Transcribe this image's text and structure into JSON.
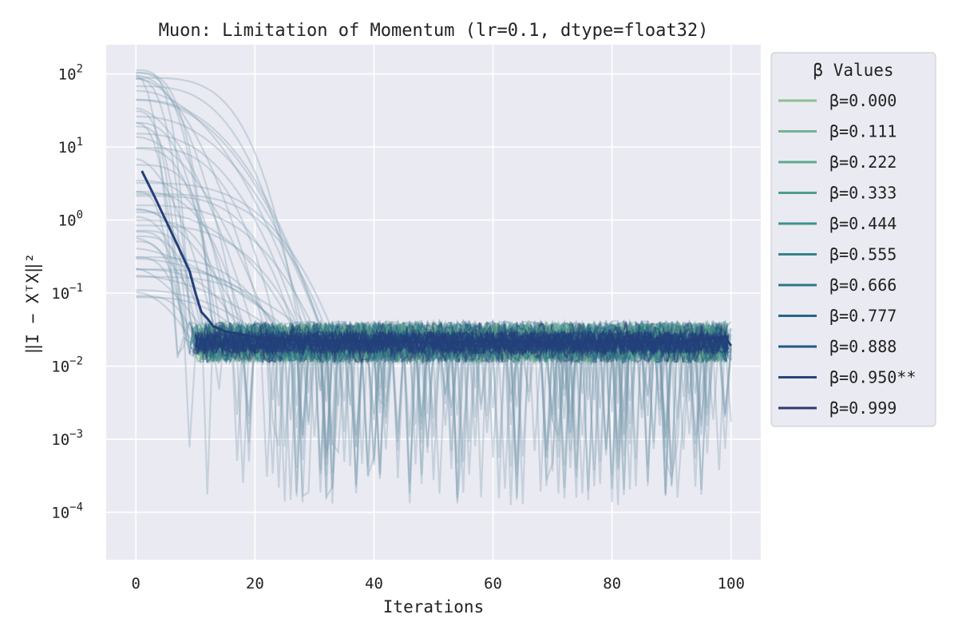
{
  "chart_data": {
    "type": "line",
    "title": "Muon: Limitation of Momentum (lr=0.1, dtype=float32)",
    "xlabel": "Iterations",
    "ylabel": "‖I − XᵀX‖²",
    "x_ticks": [
      "0",
      "20",
      "40",
      "60",
      "80",
      "100"
    ],
    "y_ticks": [
      {
        "base": "10",
        "exp": "2"
      },
      {
        "base": "10",
        "exp": "1"
      },
      {
        "base": "10",
        "exp": "0"
      },
      {
        "base": "10",
        "exp": "−1"
      },
      {
        "base": "10",
        "exp": "−2"
      },
      {
        "base": "10",
        "exp": "−3"
      },
      {
        "base": "10",
        "exp": "−4"
      }
    ],
    "xlim": [
      -5,
      105
    ],
    "ylim_log10": [
      -4.65,
      2.4
    ],
    "y_scale": "log",
    "grid": true,
    "legend_title": "β Values",
    "legend_position": "outside-right",
    "series": [
      {
        "name": "β=0.000",
        "color": "#8cc08f"
      },
      {
        "name": "β=0.111",
        "color": "#73b491"
      },
      {
        "name": "β=0.222",
        "color": "#5ea990"
      },
      {
        "name": "β=0.333",
        "color": "#4d9e8e"
      },
      {
        "name": "β=0.444",
        "color": "#3f918b"
      },
      {
        "name": "β=0.555",
        "color": "#358389"
      },
      {
        "name": "β=0.666",
        "color": "#2d7587"
      },
      {
        "name": "β=0.777",
        "color": "#266685"
      },
      {
        "name": "β=0.888",
        "color": "#245781"
      },
      {
        "name": "β=0.950**",
        "color": "#274779"
      },
      {
        "name": "β=0.999",
        "color": "#2c3870"
      }
    ],
    "highlight_series": {
      "name": "β=0.950**",
      "color": "#233f7a",
      "x": [
        1,
        3,
        5,
        7,
        9,
        10,
        11,
        12,
        13,
        15,
        20,
        30,
        40,
        50,
        60,
        70,
        80,
        90,
        99,
        100
      ],
      "y": [
        4.7,
        2.2,
        1.0,
        0.45,
        0.2,
        0.1,
        0.055,
        0.045,
        0.035,
        0.03,
        0.025,
        0.022,
        0.022,
        0.021,
        0.022,
        0.021,
        0.022,
        0.021,
        0.025,
        0.019
      ]
    },
    "faint_trials_note": "many faint trial lines start between 0.07 and 130 and decay into a noisy band around 0.02"
  }
}
